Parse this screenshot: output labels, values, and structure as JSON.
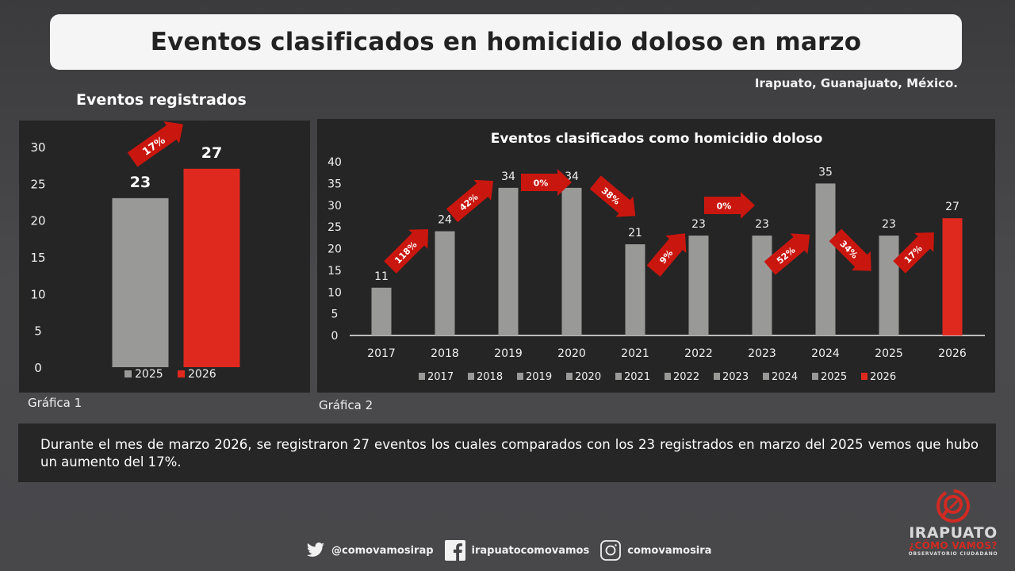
{
  "header": {
    "title": "Eventos clasificados en homicidio doloso en marzo",
    "location": "Irapuato, Guanajuato, México.",
    "section_label": "Eventos registrados"
  },
  "colors": {
    "background": "#444446",
    "panel": "#252525",
    "bar_gray": "#999997",
    "bar_red": "#e0291e",
    "arrow_red": "#c9160e"
  },
  "chart_data": [
    {
      "id": "grafica-1",
      "type": "bar",
      "title": "",
      "categories": [
        "2025",
        "2026"
      ],
      "values": [
        23,
        27
      ],
      "colors": [
        "#999997",
        "#e0291e"
      ],
      "ylim": [
        0,
        30
      ],
      "yticks": [
        0,
        5,
        10,
        15,
        20,
        25,
        30
      ],
      "legend": [
        "2025",
        "2026"
      ],
      "legend_position": "bottom",
      "annotations": [
        {
          "from": "2025",
          "to": "2026",
          "label": "17%",
          "direction": "up"
        }
      ],
      "caption": "Gráfica 1",
      "grid": false
    },
    {
      "id": "grafica-2",
      "type": "bar",
      "title": "Eventos clasificados como homicidio doloso",
      "categories": [
        "2017",
        "2018",
        "2019",
        "2020",
        "2021",
        "2022",
        "2023",
        "2024",
        "2025",
        "2026"
      ],
      "values": [
        11,
        24,
        34,
        34,
        21,
        23,
        23,
        35,
        23,
        27
      ],
      "colors": [
        "#999997",
        "#999997",
        "#999997",
        "#999997",
        "#999997",
        "#999997",
        "#999997",
        "#999997",
        "#999997",
        "#e0291e"
      ],
      "ylim": [
        0,
        40
      ],
      "yticks": [
        0,
        5,
        10,
        15,
        20,
        25,
        30,
        35,
        40
      ],
      "legend": [
        "2017",
        "2018",
        "2019",
        "2020",
        "2021",
        "2022",
        "2023",
        "2024",
        "2025",
        "2026"
      ],
      "legend_position": "bottom",
      "annotations": [
        {
          "from": "2017",
          "to": "2018",
          "label": "118%",
          "direction": "up"
        },
        {
          "from": "2018",
          "to": "2019",
          "label": "42%",
          "direction": "up"
        },
        {
          "from": "2019",
          "to": "2020",
          "label": "0%",
          "direction": "flat"
        },
        {
          "from": "2020",
          "to": "2021",
          "label": "38%",
          "direction": "down"
        },
        {
          "from": "2021",
          "to": "2022",
          "label": "9%",
          "direction": "up"
        },
        {
          "from": "2022",
          "to": "2023",
          "label": "0%",
          "direction": "flat"
        },
        {
          "from": "2023",
          "to": "2024",
          "label": "52%",
          "direction": "up"
        },
        {
          "from": "2024",
          "to": "2025",
          "label": "34%",
          "direction": "down"
        },
        {
          "from": "2025",
          "to": "2026",
          "label": "17%",
          "direction": "up"
        }
      ],
      "caption": "Gráfica 2",
      "grid": false
    }
  ],
  "summary": "Durante el mes de marzo 2026, se registraron 27 eventos los cuales comparados con los 23 registrados en marzo del 2025 vemos que hubo un aumento del 17%.",
  "footer": {
    "twitter": {
      "icon": "twitter-icon",
      "handle": "@comovamosirap"
    },
    "facebook": {
      "icon": "facebook-icon",
      "handle": "irapuatocomovamos"
    },
    "instagram": {
      "icon": "instagram-icon",
      "handle": "comovamosira"
    }
  },
  "logo": {
    "line1": "IRAPUATO",
    "line2": "¿CÓMO VAMOS?",
    "line3": "OBSERVATORIO CIUDADANO"
  }
}
